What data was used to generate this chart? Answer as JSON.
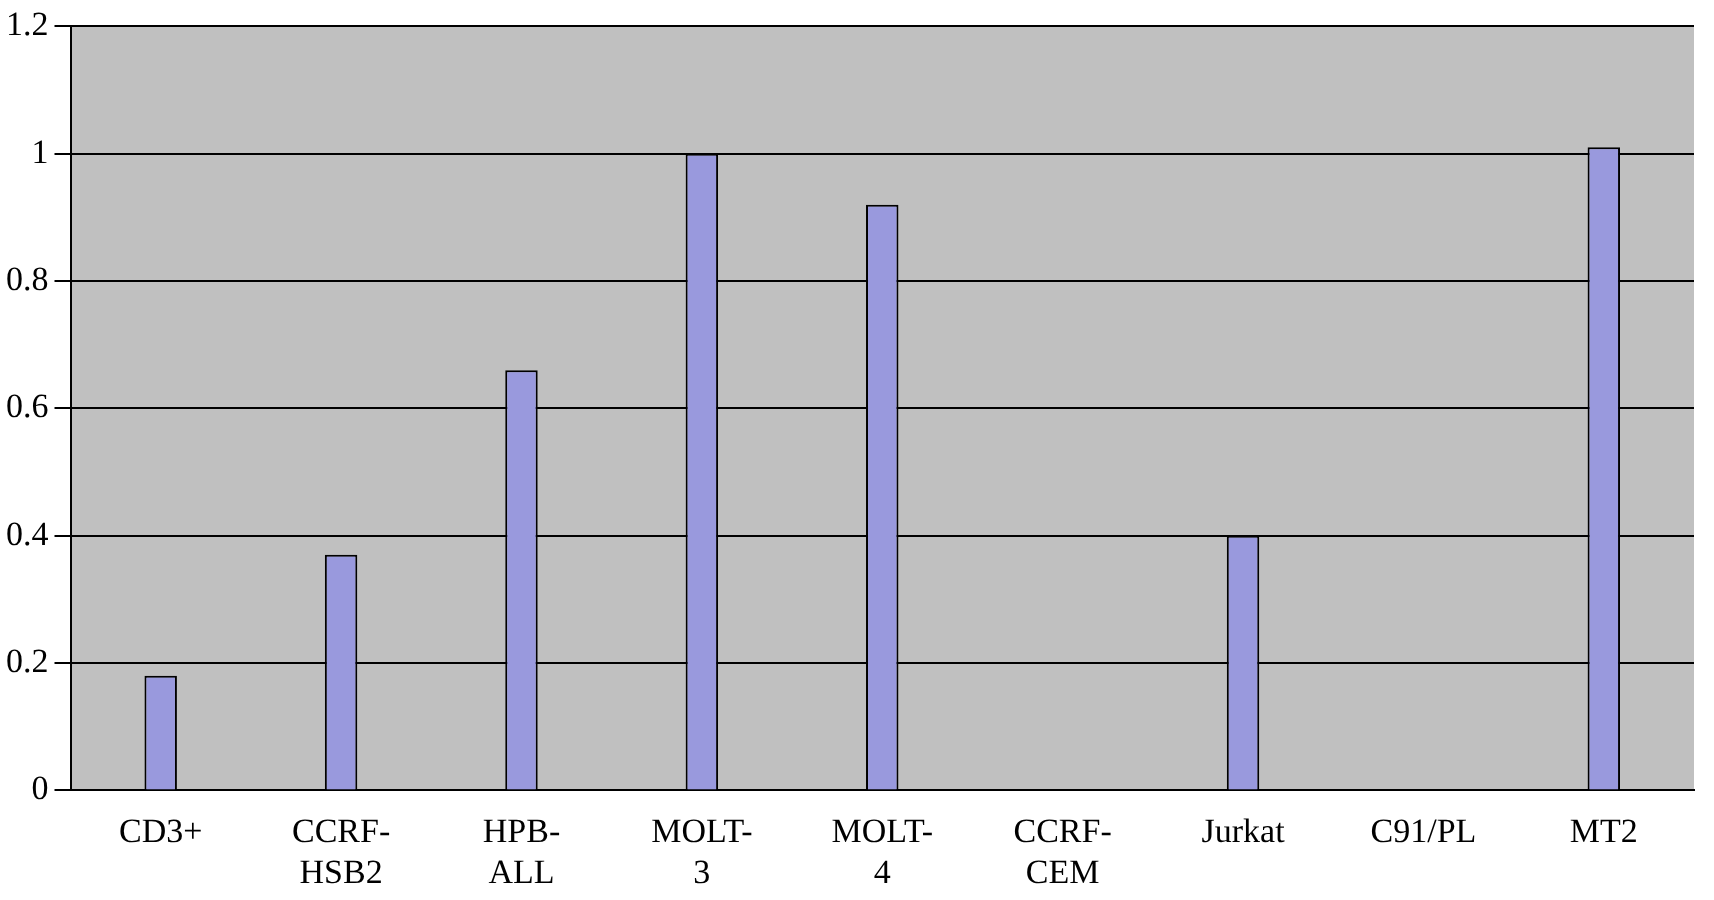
{
  "chart_data": {
    "type": "bar",
    "categories": [
      "CD3+",
      "CCRF-HSB2",
      "HPB-ALL",
      "MOLT-3",
      "MOLT-4",
      "CCRF-CEM",
      "Jurkat",
      "C91/PL",
      "MT2"
    ],
    "values": [
      0.18,
      0.37,
      0.66,
      1.0,
      0.92,
      0,
      0.4,
      0,
      1.01
    ],
    "color": "#9999dd",
    "ylim": [
      0,
      1.2
    ],
    "yticks": [
      0,
      0.2,
      0.4,
      0.6,
      0.8,
      1,
      1.2
    ],
    "grid": "y",
    "legend": false
  }
}
